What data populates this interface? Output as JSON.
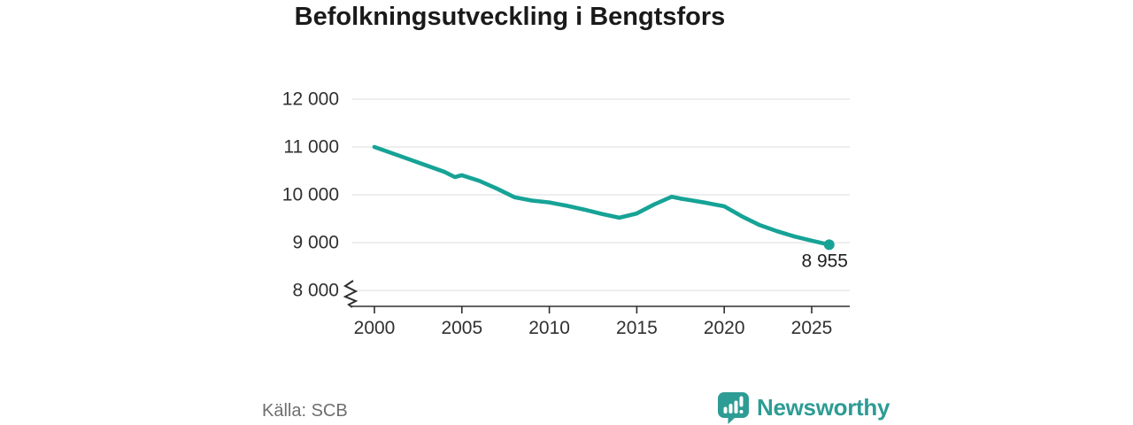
{
  "title": "Befolkningsutveckling i Bengtsfors",
  "source": "Källa: SCB",
  "branding": {
    "name": "Newsworthy",
    "icon": "newsworthy-speech-bubble-bars-icon",
    "color": "#2d9c94"
  },
  "colors": {
    "line": "#16a396",
    "grid": "#e3e3e3",
    "axis": "#2e2e2e",
    "tick_text": "#303030",
    "point_label_text": "#1f1f1f",
    "background": "#ffffff"
  },
  "chart_data": {
    "type": "line",
    "title": "Befolkningsutveckling i Bengtsfors",
    "xlabel": "",
    "ylabel": "",
    "grid": "horizontal",
    "legend": "none",
    "ylim": [
      8000,
      12000
    ],
    "xlim": [
      2000,
      2027
    ],
    "y_axis_break": true,
    "yticks": [
      {
        "value": 8000,
        "label": "8 000"
      },
      {
        "value": 9000,
        "label": "9 000"
      },
      {
        "value": 10000,
        "label": "10 000"
      },
      {
        "value": 11000,
        "label": "11 000"
      },
      {
        "value": 12000,
        "label": "12 000"
      }
    ],
    "xticks": [
      {
        "value": 2000,
        "label": "2000"
      },
      {
        "value": 2005,
        "label": "2005"
      },
      {
        "value": 2010,
        "label": "2010"
      },
      {
        "value": 2015,
        "label": "2015"
      },
      {
        "value": 2020,
        "label": "2020"
      },
      {
        "value": 2025,
        "label": "2025"
      }
    ],
    "x": [
      2000,
      2001,
      2002,
      2003,
      2004,
      2004.6,
      2005,
      2006,
      2007,
      2008,
      2009,
      2010,
      2011,
      2012,
      2013,
      2014,
      2015,
      2016,
      2017,
      2017.5,
      2018,
      2019,
      2020,
      2021,
      2022,
      2023,
      2024,
      2025,
      2026
    ],
    "values": [
      11000,
      10870,
      10740,
      10610,
      10480,
      10370,
      10410,
      10290,
      10130,
      9950,
      9880,
      9840,
      9770,
      9690,
      9600,
      9520,
      9610,
      9800,
      9960,
      9920,
      9890,
      9830,
      9760,
      9550,
      9370,
      9240,
      9130,
      9040,
      8955
    ],
    "last_point": {
      "x": 2026,
      "value": 8955,
      "label": "8 955"
    }
  }
}
